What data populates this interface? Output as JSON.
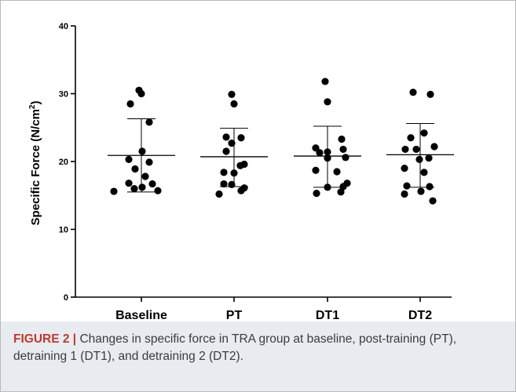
{
  "chart_data": {
    "type": "scatter",
    "subtype": "dot-plot-with-mean-and-sd",
    "ylabel_main": "Specific Force (N/cm",
    "ylabel_sup": "2",
    "ylabel_close": ")",
    "ylim": [
      0,
      40
    ],
    "yticks": [
      0,
      10,
      20,
      30,
      40
    ],
    "categories": [
      "Baseline",
      "PT",
      "DT1",
      "DT2"
    ],
    "groups": [
      {
        "name": "Baseline",
        "mean": 20.9,
        "sd_low": 15.5,
        "sd_high": 26.3,
        "points": [
          30.5,
          30.0,
          28.5,
          25.8,
          21.5,
          20.3,
          19.9,
          18.9,
          17.8,
          16.8,
          16.7,
          16.2,
          16.0,
          15.7,
          15.6
        ]
      },
      {
        "name": "PT",
        "mean": 20.7,
        "sd_low": 16.3,
        "sd_high": 24.9,
        "points": [
          29.9,
          28.5,
          23.6,
          23.5,
          22.7,
          21.5,
          19.6,
          19.4,
          18.4,
          18.3,
          16.7,
          16.6,
          16.1,
          15.7,
          15.2
        ]
      },
      {
        "name": "DT1",
        "mean": 20.8,
        "sd_low": 16.2,
        "sd_high": 25.2,
        "points": [
          31.8,
          28.8,
          23.3,
          22.0,
          21.8,
          21.4,
          21.3,
          20.6,
          20.5,
          18.7,
          18.5,
          16.8,
          16.3,
          16.2,
          15.5,
          15.3
        ]
      },
      {
        "name": "DT2",
        "mean": 21.0,
        "sd_low": 16.2,
        "sd_high": 25.6,
        "points": [
          30.2,
          29.9,
          24.2,
          23.5,
          22.2,
          21.8,
          21.8,
          20.5,
          20.3,
          19.0,
          18.4,
          16.4,
          16.3,
          15.6,
          15.2,
          14.2
        ]
      }
    ]
  },
  "caption": {
    "label": "FIGURE 2 |",
    "text": " Changes in specific force in TRA group at baseline, post-training (PT), detraining 1 (DT1), and detraining 2 (DT2)."
  }
}
